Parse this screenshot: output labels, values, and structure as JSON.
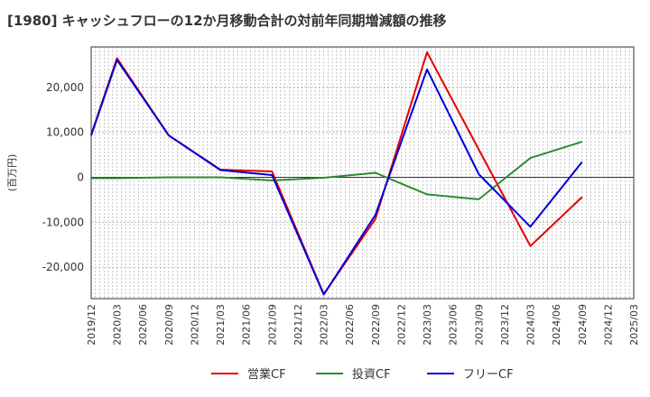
{
  "chart_data": {
    "type": "line",
    "title": "[1980]  キャッシュフローの12か月移動合計の対前年同期増減額の推移",
    "ylabel": "(百万円)",
    "xlabel": "",
    "ylim": [
      -27000,
      29000
    ],
    "yticks": [
      -20000,
      -10000,
      0,
      10000,
      20000
    ],
    "ytick_labels": [
      "-20,000",
      "-10,000",
      "0",
      "10,000",
      "20,000"
    ],
    "x_labels": [
      "2019/12",
      "2020/03",
      "2020/06",
      "2020/09",
      "2020/12",
      "2021/03",
      "2021/06",
      "2021/09",
      "2021/12",
      "2022/03",
      "2022/06",
      "2022/09",
      "2022/12",
      "2023/03",
      "2023/06",
      "2023/09",
      "2023/12",
      "2024/03",
      "2024/06",
      "2024/09",
      "2024/12",
      "2025/03"
    ],
    "grid": true,
    "legend_position": "bottom",
    "series": [
      {
        "name": "営業CF",
        "color": "#e60000",
        "values": [
          9500,
          26500,
          null,
          9300,
          null,
          1700,
          null,
          1300,
          null,
          -26000,
          null,
          -9300,
          null,
          27800,
          null,
          6200,
          null,
          -15300,
          null,
          -4400,
          null,
          null
        ]
      },
      {
        "name": "投資CF",
        "color": "#2e8b2e",
        "values": [
          -200,
          -200,
          null,
          0,
          null,
          0,
          null,
          -700,
          null,
          -100,
          null,
          1000,
          null,
          -3800,
          null,
          -4900,
          null,
          4300,
          null,
          7900,
          null,
          null
        ]
      },
      {
        "name": "フリーCF",
        "color": "#0000d8",
        "values": [
          9300,
          26100,
          null,
          9300,
          null,
          1600,
          null,
          500,
          null,
          -26100,
          null,
          -8400,
          null,
          24000,
          null,
          700,
          null,
          -11000,
          null,
          3400,
          null,
          null
        ]
      }
    ]
  }
}
